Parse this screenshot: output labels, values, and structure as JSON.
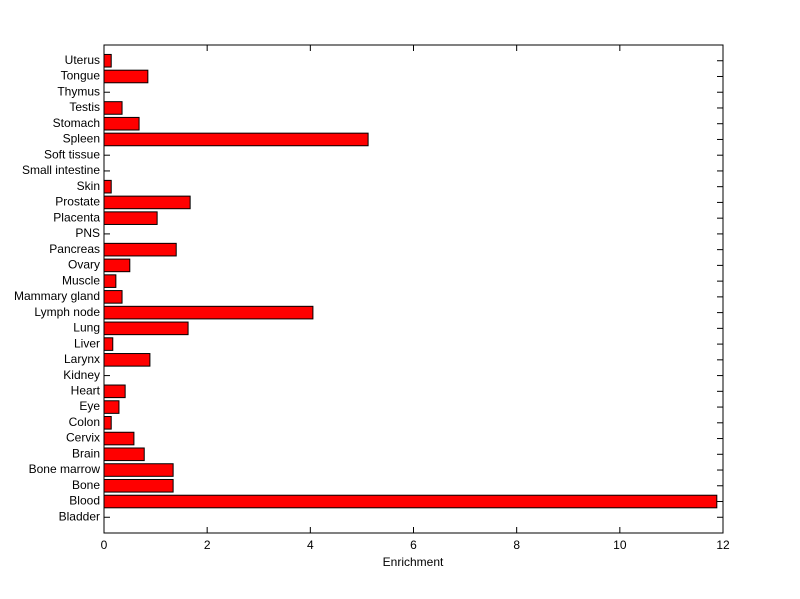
{
  "chart_data": {
    "type": "barh",
    "x_label": "Enrichment",
    "categories": [
      "Bladder",
      "Blood",
      "Bone",
      "Bone marrow",
      "Brain",
      "Cervix",
      "Colon",
      "Eye",
      "Heart",
      "Kidney",
      "Larynx",
      "Liver",
      "Lung",
      "Lymph node",
      "Mammary gland",
      "Muscle",
      "Ovary",
      "Pancreas",
      "PNS",
      "Placenta",
      "Prostate",
      "Skin",
      "Small intestine",
      "Soft tissue",
      "Spleen",
      "Stomach",
      "Testis",
      "Thymus",
      "Tongue",
      "Uterus"
    ],
    "values": [
      0,
      11.88,
      1.34,
      1.34,
      0.78,
      0.58,
      0.14,
      0.29,
      0.41,
      0,
      0.89,
      0.17,
      1.63,
      4.05,
      0.35,
      0.23,
      0.5,
      1.4,
      0,
      1.03,
      1.67,
      0.14,
      0,
      0,
      5.12,
      0.68,
      0.35,
      0,
      0.85,
      0.14
    ],
    "color": "#ff0000",
    "xlim": [
      0,
      12
    ],
    "xticks": [
      0,
      2,
      4,
      6,
      8,
      10,
      12
    ]
  }
}
